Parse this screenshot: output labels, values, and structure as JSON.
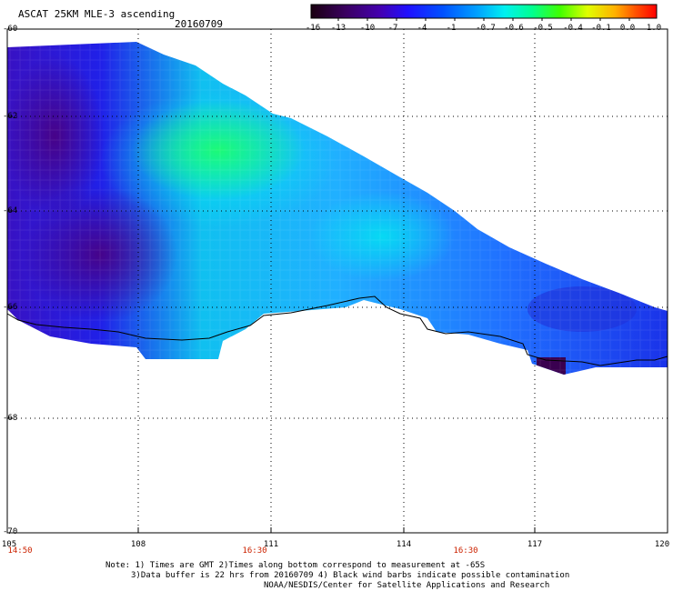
{
  "header": {
    "title": "ASCAT 25KM MLE-3 ascending",
    "date": "20160709"
  },
  "colorbar": {
    "labels": [
      "-16",
      "-13",
      "-10",
      "-7",
      "-4",
      "-1",
      "-0.7",
      "-0.6",
      "-0.5",
      "-0.4",
      "-0.1",
      "0.0",
      "1.0"
    ],
    "colors": [
      "#1a0010",
      "#3a0060",
      "#4400b0",
      "#2010ff",
      "#0050ff",
      "#00a0ff",
      "#00f0f0",
      "#00ff90",
      "#40ff00",
      "#e0ff00",
      "#ffb000",
      "#ff5000",
      "#ff0000"
    ]
  },
  "axes": {
    "lat_labels": [
      "-60",
      "-62",
      "-64",
      "-66",
      "-68",
      "-70"
    ],
    "lon_labels": [
      "105",
      "108",
      "111",
      "114",
      "117",
      "120"
    ],
    "time_labels": [
      "14:50",
      "16:30",
      "16:30"
    ]
  },
  "notes": {
    "line1": "Note: 1) Times are GMT 2)Times along bottom correspond to measurement at -65S",
    "line2": "3)Data buffer is 22 hrs from 20160709 4) Black wind barbs indicate possible contamination",
    "line3": "NOAA/NESDIS/Center for Satellite Applications and Research"
  }
}
